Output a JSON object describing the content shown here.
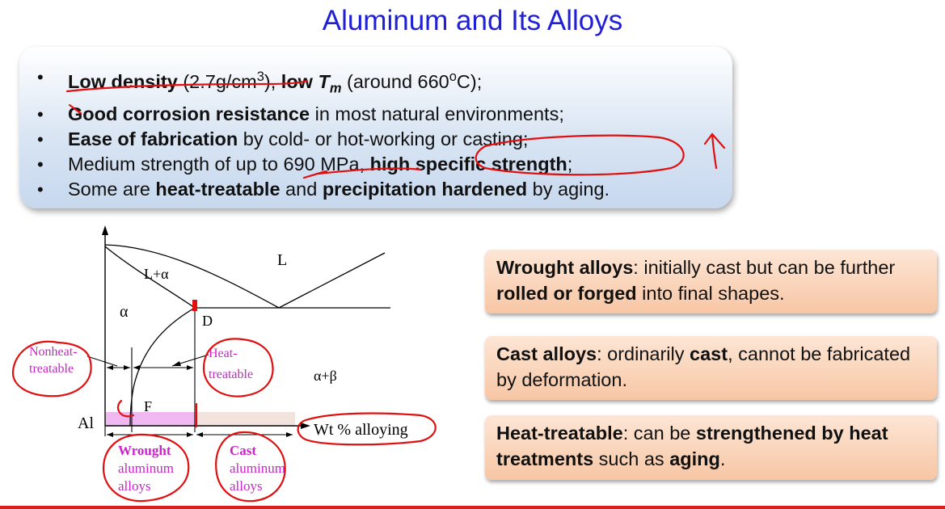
{
  "slide": {
    "title": "Aluminum and Its Alloys"
  },
  "bullets": [
    {
      "parts": [
        {
          "t": "Low density",
          "b": true
        },
        {
          "t": " (2.7g/cm"
        },
        {
          "t": "3",
          "sup": true
        },
        {
          "t": "), "
        },
        {
          "t": "low ",
          "b": true
        },
        {
          "t": "T",
          "b": true,
          "i": true
        },
        {
          "t": "m",
          "b": true,
          "i": true,
          "sub": true
        },
        {
          "t": " (around 660"
        },
        {
          "t": "o",
          "sup": true
        },
        {
          "t": "C);"
        }
      ]
    },
    {
      "parts": [
        {
          "t": "Good corrosion resistance",
          "b": true
        },
        {
          "t": " in most natural environments;"
        }
      ]
    },
    {
      "parts": [
        {
          "t": "Ease of fabrication",
          "b": true
        },
        {
          "t": " by cold- or hot-working or casting;"
        }
      ]
    },
    {
      "parts": [
        {
          "t": "Medium strength of up to 690 MPa, "
        },
        {
          "t": "high specific strength",
          "b": true
        },
        {
          "t": ";"
        }
      ]
    },
    {
      "parts": [
        {
          "t": "Some are "
        },
        {
          "t": "heat-treatable",
          "b": true
        },
        {
          "t": " and "
        },
        {
          "t": "precipitation hardened",
          "b": true
        },
        {
          "t": " by aging."
        }
      ]
    }
  ],
  "diagram": {
    "label_L": "L",
    "label_L_alpha": "L+α",
    "label_alpha": "α",
    "label_D": "D",
    "label_F": "F",
    "label_alpha_beta": "α+β",
    "label_Al": "Al",
    "label_axis": "Wt % alloying",
    "nonheat_line1": "Nonheat-",
    "nonheat_line2": "treatable",
    "heat_line1": "Heat-",
    "heat_line2": "treatable",
    "wrought_line1": "Wrought",
    "wrought_line2": "aluminum",
    "wrought_line3": "alloys",
    "cast_line1": "Cast",
    "cast_line2": "aluminum",
    "cast_line3": "alloys",
    "colors": {
      "magenta_text": "#cc22cc",
      "wrought_fill": "#f0b8f0",
      "cast_fill": "#f2e4dc",
      "annotation": "#e01010"
    }
  },
  "boxes": [
    {
      "parts": [
        {
          "t": "Wrought alloys",
          "b": true
        },
        {
          "t": ": initially cast but can be further "
        },
        {
          "t": "rolled or forged",
          "b": true
        },
        {
          "t": " into final shapes."
        }
      ]
    },
    {
      "parts": [
        {
          "t": "Cast alloys",
          "b": true
        },
        {
          "t": ": ordinarily "
        },
        {
          "t": "cast",
          "b": true
        },
        {
          "t": ", cannot be fabricated by deformation."
        }
      ]
    },
    {
      "parts": [
        {
          "t": "Heat-treatable",
          "b": true
        },
        {
          "t": ": can be "
        },
        {
          "t": "strengthened by heat treatments",
          "b": true
        },
        {
          "t": " such as "
        },
        {
          "t": "aging",
          "b": true
        },
        {
          "t": "."
        }
      ]
    }
  ]
}
